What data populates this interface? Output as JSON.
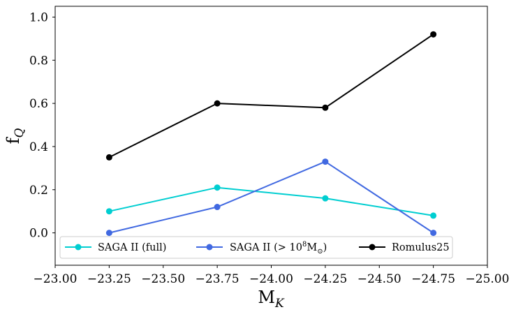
{
  "chart_data": {
    "type": "line",
    "title": "",
    "xlabel": "M_K",
    "ylabel": "f_Q",
    "xlim": [
      -23.0,
      -25.0
    ],
    "ylim": [
      -0.15,
      1.05
    ],
    "x_inverted": true,
    "x_ticks": [
      -23.0,
      -23.25,
      -23.5,
      -23.75,
      -24.0,
      -24.25,
      -24.5,
      -24.75,
      -25.0
    ],
    "x_tick_labels": [
      "−23.00",
      "−23.25",
      "−23.50",
      "−23.75",
      "−24.00",
      "−24.25",
      "−24.50",
      "−24.75",
      "−25.00"
    ],
    "y_ticks": [
      0.0,
      0.2,
      0.4,
      0.6,
      0.8,
      1.0
    ],
    "y_tick_labels": [
      "0.0",
      "0.2",
      "0.4",
      "0.6",
      "0.8",
      "1.0"
    ],
    "grid": false,
    "legend_position": "bottom",
    "x": [
      -23.25,
      -23.75,
      -24.25,
      -24.75
    ],
    "series": [
      {
        "name": "SAGA II (full)",
        "values": [
          0.1,
          0.21,
          0.16,
          0.08
        ],
        "color": "#00CED1"
      },
      {
        "name": "SAGA II (> 10⁸M⊙)",
        "values": [
          0.0,
          0.12,
          0.33,
          0.0
        ],
        "color": "#4169E1"
      },
      {
        "name": "Romulus25",
        "values": [
          0.35,
          0.6,
          0.58,
          0.92
        ],
        "color": "#000000"
      }
    ]
  }
}
